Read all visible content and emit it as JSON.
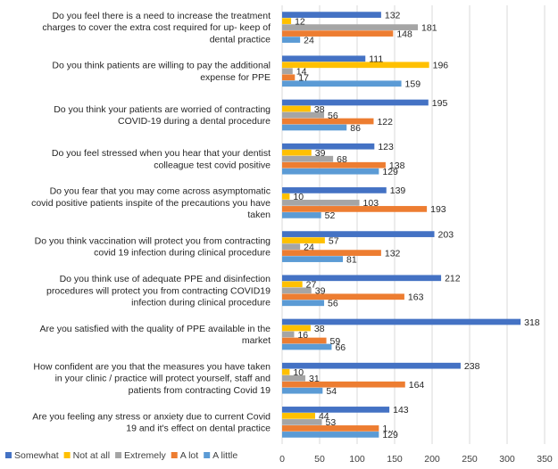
{
  "chart_data": {
    "type": "bar",
    "orientation": "horizontal",
    "grid": true,
    "legend_position": "bottom-left",
    "xlim": [
      0,
      350
    ],
    "x_ticks": [
      "0",
      "50",
      "100",
      "150",
      "200",
      "250",
      "300",
      "350"
    ],
    "categories": [
      {
        "lines": [
          "Do you feel there is a need to increase the treatment",
          "charges to cover the extra cost required for up- keep of",
          "dental practice"
        ]
      },
      {
        "lines": [
          "Do you think patients are willing to pay the additional",
          "expense for PPE"
        ]
      },
      {
        "lines": [
          "Do you think your patients are worried of contracting",
          "COVID-19 during a dental procedure"
        ]
      },
      {
        "lines": [
          "Do you feel stressed when you hear that your dentist",
          "colleague test covid positive"
        ]
      },
      {
        "lines": [
          "Do you fear that you may come across asymptomatic",
          "covid positive patients inspite of the precautions you have",
          "taken"
        ]
      },
      {
        "lines": [
          "Do you think vaccination will protect you from contracting",
          "covid 19 infection during clinical procedure"
        ]
      },
      {
        "lines": [
          "Do you think use of adequate PPE and disinfection",
          "procedures will protect you from contracting COVID19",
          "infection during clinical procedure"
        ]
      },
      {
        "lines": [
          "Are you satisfied with the quality of PPE available in the",
          "market"
        ]
      },
      {
        "lines": [
          "How confident are you that the measures you have taken",
          "in your clinic / practice will protect yourself, staff and",
          "patients from contracting Covid 19"
        ]
      },
      {
        "lines": [
          "Are you feeling any stress or anxiety due to current Covid",
          "19 and it's effect on dental practice"
        ]
      }
    ],
    "series": [
      {
        "name": "Somewhat",
        "color": "#4472c4",
        "values": [
          132,
          111,
          195,
          123,
          139,
          203,
          212,
          318,
          238,
          143
        ]
      },
      {
        "name": "Not at all",
        "color": "#ffc000",
        "values": [
          12,
          196,
          38,
          39,
          10,
          57,
          27,
          38,
          10,
          44
        ]
      },
      {
        "name": "Extremely",
        "color": "#a5a5a5",
        "values": [
          181,
          14,
          56,
          68,
          103,
          24,
          39,
          16,
          31,
          53
        ]
      },
      {
        "name": "A lot",
        "color": "#ed7d31",
        "values": [
          148,
          17,
          122,
          138,
          193,
          132,
          163,
          59,
          164,
          129
        ]
      },
      {
        "name": "A little",
        "color": "#5b9bd5",
        "values": [
          24,
          159,
          86,
          129,
          52,
          81,
          56,
          66,
          54,
          129
        ]
      }
    ],
    "value_labels": [
      [
        "132",
        "12",
        "181",
        "148",
        "24"
      ],
      [
        "111",
        "196",
        "14",
        "17",
        "159"
      ],
      [
        "195",
        "38",
        "56",
        "122",
        "86"
      ],
      [
        "123",
        "39",
        "68",
        "138",
        "129"
      ],
      [
        "139",
        "10",
        "103",
        "193",
        "52"
      ],
      [
        "203",
        "57",
        "24",
        "132",
        "81"
      ],
      [
        "212",
        "27",
        "39",
        "163",
        "56"
      ],
      [
        "318",
        "38",
        "16",
        "59",
        "66"
      ],
      [
        "238",
        "10",
        "31",
        "164",
        "54"
      ],
      [
        "143",
        "44",
        "53",
        "1…",
        "129"
      ]
    ]
  }
}
